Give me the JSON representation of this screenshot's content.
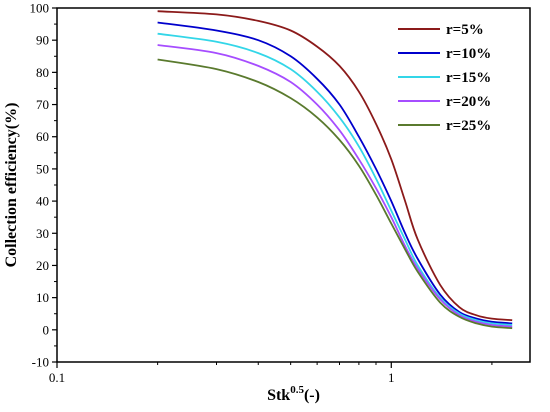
{
  "chart_data": {
    "type": "line",
    "xlabel_main": "Stk",
    "xlabel_sup": "0.5",
    "xlabel_tail": "(-)",
    "ylabel": "Collection efficiency(%)",
    "xscale": "log",
    "xlim": [
      0.1,
      2.6
    ],
    "ylim": [
      -10,
      100
    ],
    "xticks": [
      0.1,
      1
    ],
    "xtick_labels": [
      "0.1",
      "1"
    ],
    "yticks": [
      -10,
      0,
      10,
      20,
      30,
      40,
      50,
      60,
      70,
      80,
      90,
      100
    ],
    "ytick_labels": [
      "-10",
      "0",
      "10",
      "20",
      "30",
      "40",
      "50",
      "60",
      "70",
      "80",
      "90",
      "100"
    ],
    "legend_position": "top-right",
    "grid": false,
    "series": [
      {
        "name": "r=5%",
        "color": "#8b1a1a",
        "x": [
          0.2,
          0.3,
          0.4,
          0.5,
          0.6,
          0.7,
          0.8,
          0.9,
          1.0,
          1.1,
          1.2,
          1.4,
          1.6,
          1.8,
          2.0,
          2.3
        ],
        "y": [
          99,
          98,
          96,
          93,
          88,
          82,
          74,
          64,
          53,
          40,
          28,
          14,
          7,
          4.5,
          3.5,
          3
        ]
      },
      {
        "name": "r=10%",
        "color": "#0000cc",
        "x": [
          0.2,
          0.3,
          0.4,
          0.5,
          0.6,
          0.7,
          0.8,
          0.9,
          1.0,
          1.1,
          1.2,
          1.4,
          1.6,
          1.8,
          2.0,
          2.3
        ],
        "y": [
          95.5,
          93,
          90,
          85,
          78,
          70,
          60,
          50,
          40,
          30,
          22,
          11,
          5.5,
          3.5,
          2.5,
          2
        ]
      },
      {
        "name": "r=15%",
        "color": "#33d6e8",
        "x": [
          0.2,
          0.3,
          0.4,
          0.5,
          0.6,
          0.7,
          0.8,
          0.9,
          1.0,
          1.1,
          1.2,
          1.4,
          1.6,
          1.8,
          2.0,
          2.3
        ],
        "y": [
          92,
          89.5,
          86,
          81,
          74,
          66,
          57,
          47,
          37,
          28,
          20,
          10,
          5,
          3,
          2,
          1.5
        ]
      },
      {
        "name": "r=20%",
        "color": "#a64dff",
        "x": [
          0.2,
          0.3,
          0.4,
          0.5,
          0.6,
          0.7,
          0.8,
          0.9,
          1.0,
          1.1,
          1.2,
          1.4,
          1.6,
          1.8,
          2.0,
          2.3
        ],
        "y": [
          88.5,
          86,
          82,
          77,
          70,
          62,
          53,
          44,
          35,
          26,
          19,
          9.5,
          4.5,
          2.5,
          1.5,
          1
        ]
      },
      {
        "name": "r=25%",
        "color": "#5a7a2e",
        "x": [
          0.2,
          0.3,
          0.4,
          0.5,
          0.6,
          0.7,
          0.8,
          0.9,
          1.0,
          1.1,
          1.2,
          1.4,
          1.6,
          1.8,
          2.0,
          2.3
        ],
        "y": [
          84,
          81,
          77,
          72,
          66,
          59,
          51,
          42,
          33,
          25,
          18,
          8.5,
          4,
          2,
          1,
          0.5
        ]
      }
    ]
  }
}
